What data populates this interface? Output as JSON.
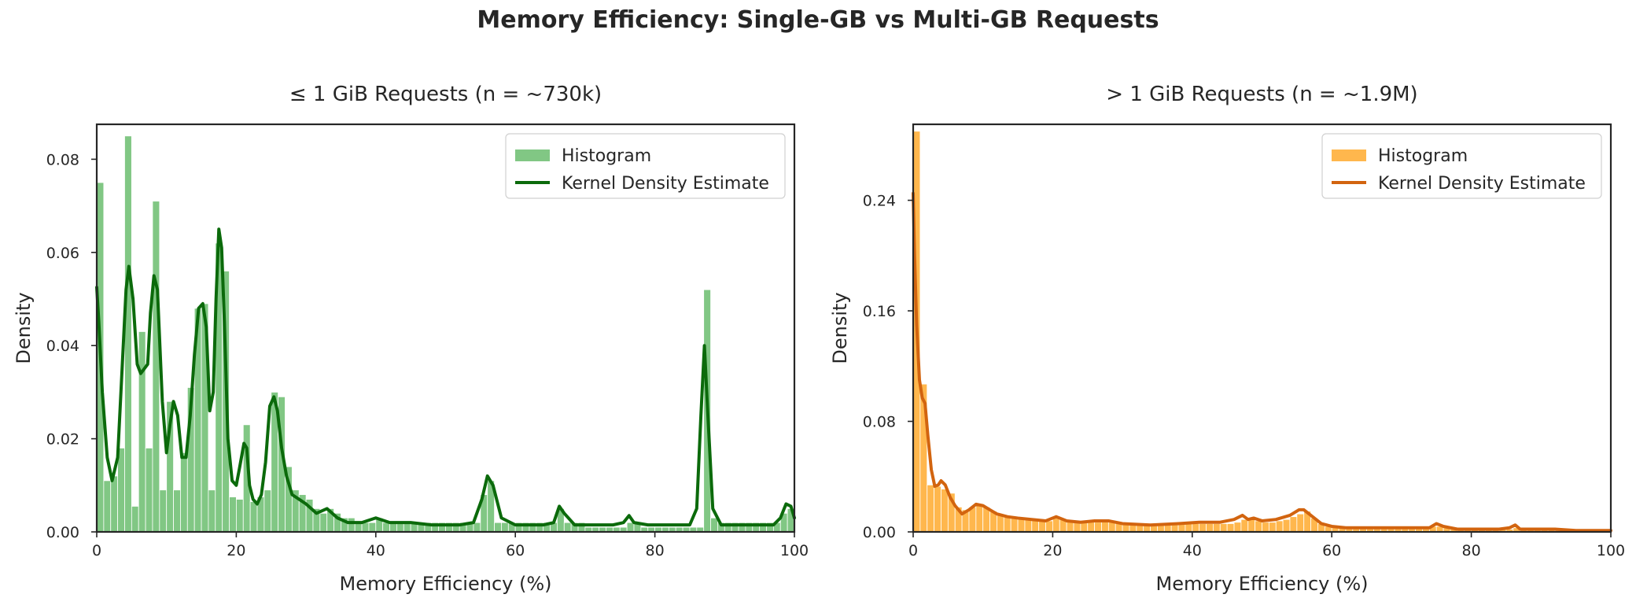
{
  "figure": {
    "suptitle": "Memory Efficiency: Single-GB vs Multi-GB Requests"
  },
  "chart_data": [
    {
      "type": "bar",
      "title": "≤ 1 GiB Requests (n = ~730k)",
      "xlabel": "Memory Efficiency (%)",
      "ylabel": "Density",
      "xlim": [
        0,
        100
      ],
      "ylim": [
        0,
        0.0875
      ],
      "xticks": [
        "0",
        "20",
        "40",
        "60",
        "80",
        "100"
      ],
      "xtick_values": [
        0,
        20,
        40,
        60,
        80,
        100
      ],
      "yticks": [
        "0.00",
        "0.02",
        "0.04",
        "0.06",
        "0.08"
      ],
      "ytick_values": [
        0,
        0.02,
        0.04,
        0.06,
        0.08
      ],
      "grid": false,
      "legend_position": "top-right",
      "legend": [
        "Histogram",
        "Kernel Density Estimate"
      ],
      "colors": {
        "hist": "#81c784",
        "kde": "#0b6a0b"
      },
      "bin_width": 1,
      "histogram": [
        0.075,
        0.011,
        0.012,
        0.018,
        0.085,
        0.0055,
        0.043,
        0.018,
        0.071,
        0.009,
        0.028,
        0.009,
        0.017,
        0.031,
        0.048,
        0.049,
        0.009,
        0.062,
        0.056,
        0.0075,
        0.007,
        0.023,
        0.0065,
        0.0075,
        0.009,
        0.03,
        0.029,
        0.014,
        0.009,
        0.008,
        0.007,
        0.005,
        0.004,
        0.005,
        0.004,
        0.003,
        0.003,
        0.002,
        0.002,
        0.002,
        0.003,
        0.002,
        0.002,
        0.002,
        0.002,
        0.002,
        0.002,
        0.002,
        0.002,
        0.002,
        0.002,
        0.002,
        0.002,
        0.002,
        0.002,
        0.008,
        0.011,
        0.002,
        0.002,
        0.002,
        0.002,
        0.002,
        0.002,
        0.002,
        0.002,
        0.002,
        0.005,
        0.002,
        0.002,
        0.002,
        0.001,
        0.001,
        0.001,
        0.001,
        0.001,
        0.001,
        0.002,
        0.002,
        0.001,
        0.001,
        0.001,
        0.001,
        0.001,
        0.001,
        0.001,
        0.001,
        0.001,
        0.052,
        0.003,
        0.002,
        0.002,
        0.002,
        0.002,
        0.002,
        0.002,
        0.002,
        0.002,
        0.002,
        0.004,
        0.005
      ],
      "kde": {
        "x": [
          0,
          0.3,
          0.8,
          1.5,
          2.2,
          3.0,
          3.8,
          4.2,
          4.6,
          5.2,
          5.8,
          6.3,
          6.8,
          7.3,
          7.7,
          8.2,
          8.7,
          9.4,
          10.0,
          10.5,
          11.0,
          11.6,
          12.2,
          12.8,
          13.4,
          14.0,
          14.6,
          15.2,
          15.7,
          16.2,
          16.7,
          17.1,
          17.5,
          17.9,
          18.3,
          18.8,
          19.4,
          20.0,
          20.5,
          21.1,
          21.5,
          21.9,
          22.4,
          23.0,
          23.6,
          24.2,
          24.8,
          25.4,
          25.9,
          26.5,
          27.2,
          28.0,
          29.0,
          30.0,
          31.5,
          33.0,
          34.5,
          36.0,
          38.0,
          40.0,
          42.0,
          45.0,
          48.0,
          50.0,
          52.0,
          54.0,
          55.2,
          56.0,
          56.8,
          58.0,
          60.0,
          62.0,
          64.0,
          65.5,
          66.3,
          67.0,
          68.5,
          70.0,
          72.0,
          74.0,
          75.5,
          76.3,
          77.0,
          79.0,
          82.0,
          85.0,
          86.0,
          86.6,
          87.1,
          87.6,
          88.3,
          89.5,
          91.0,
          93.0,
          95.0,
          97.0,
          98.0,
          98.8,
          99.5,
          100
        ],
        "y": [
          0.0525,
          0.045,
          0.03,
          0.016,
          0.011,
          0.016,
          0.04,
          0.052,
          0.057,
          0.05,
          0.036,
          0.034,
          0.035,
          0.036,
          0.047,
          0.055,
          0.052,
          0.028,
          0.017,
          0.023,
          0.028,
          0.025,
          0.016,
          0.016,
          0.025,
          0.038,
          0.048,
          0.049,
          0.044,
          0.026,
          0.03,
          0.05,
          0.065,
          0.061,
          0.045,
          0.02,
          0.011,
          0.01,
          0.014,
          0.019,
          0.018,
          0.01,
          0.007,
          0.006,
          0.008,
          0.015,
          0.027,
          0.029,
          0.026,
          0.018,
          0.012,
          0.008,
          0.007,
          0.006,
          0.004,
          0.005,
          0.003,
          0.002,
          0.002,
          0.003,
          0.002,
          0.002,
          0.0015,
          0.0015,
          0.0015,
          0.002,
          0.007,
          0.012,
          0.01,
          0.003,
          0.0015,
          0.0015,
          0.0015,
          0.002,
          0.0055,
          0.004,
          0.0015,
          0.0015,
          0.0015,
          0.0015,
          0.002,
          0.0035,
          0.002,
          0.0015,
          0.0015,
          0.0015,
          0.005,
          0.025,
          0.04,
          0.025,
          0.005,
          0.0015,
          0.0015,
          0.0015,
          0.0015,
          0.0015,
          0.003,
          0.006,
          0.0055,
          0.003
        ]
      }
    },
    {
      "type": "bar",
      "title": "> 1 GiB Requests (n = ~1.9M)",
      "xlabel": "Memory Efficiency (%)",
      "ylabel": "Density",
      "xlim": [
        0,
        100
      ],
      "ylim": [
        0,
        0.295
      ],
      "xticks": [
        "0",
        "20",
        "40",
        "60",
        "80",
        "100"
      ],
      "xtick_values": [
        0,
        20,
        40,
        60,
        80,
        100
      ],
      "yticks": [
        "0.00",
        "0.08",
        "0.16",
        "0.24"
      ],
      "ytick_values": [
        0,
        0.08,
        0.16,
        0.24
      ],
      "grid": false,
      "legend_position": "top-right",
      "legend": [
        "Histogram",
        "Kernel Density Estimate"
      ],
      "colors": {
        "hist": "#ffb74d",
        "kde": "#d2640f"
      },
      "bin_width": 1,
      "histogram": [
        0.29,
        0.107,
        0.034,
        0.033,
        0.031,
        0.028,
        0.018,
        0.016,
        0.018,
        0.02,
        0.018,
        0.015,
        0.012,
        0.011,
        0.01,
        0.01,
        0.009,
        0.009,
        0.008,
        0.008,
        0.01,
        0.009,
        0.008,
        0.007,
        0.007,
        0.007,
        0.007,
        0.008,
        0.007,
        0.007,
        0.006,
        0.006,
        0.006,
        0.006,
        0.006,
        0.006,
        0.006,
        0.006,
        0.006,
        0.006,
        0.006,
        0.006,
        0.006,
        0.006,
        0.006,
        0.006,
        0.007,
        0.009,
        0.009,
        0.008,
        0.007,
        0.007,
        0.008,
        0.009,
        0.011,
        0.013,
        0.015,
        0.01,
        0.006,
        0.004,
        0.004,
        0.003,
        0.003,
        0.003,
        0.003,
        0.003,
        0.003,
        0.003,
        0.003,
        0.003,
        0.003,
        0.003,
        0.003,
        0.003,
        0.004,
        0.004,
        0.003,
        0.002,
        0.002,
        0.002,
        0.002,
        0.002,
        0.002,
        0.002,
        0.002,
        0.002,
        0.003,
        0.002,
        0.002,
        0.002,
        0.002,
        0.002,
        0.002,
        0.002,
        0.002,
        0.002,
        0.002,
        0.002,
        0.002,
        0.002
      ],
      "kde": {
        "x": [
          0,
          0.2,
          0.5,
          0.9,
          1.3,
          1.7,
          2.1,
          2.6,
          3.1,
          3.6,
          4.0,
          4.6,
          5.3,
          6.0,
          7.0,
          8.0,
          9.0,
          10.0,
          11.0,
          12.0,
          13.5,
          15.0,
          17.0,
          19.0,
          20.5,
          22.0,
          24.0,
          26.0,
          28.0,
          30.0,
          34.0,
          38.0,
          41.0,
          44.0,
          46.0,
          47.2,
          48.0,
          48.8,
          50.0,
          52.0,
          54.0,
          55.3,
          56.0,
          57.0,
          58.5,
          60.0,
          62.0,
          65.0,
          68.0,
          70.0,
          72.0,
          74.0,
          75.0,
          76.0,
          78.0,
          80.0,
          82.0,
          84.0,
          85.5,
          86.3,
          87.0,
          89.0,
          92.0,
          95.0,
          98.0,
          100
        ],
        "y": [
          0.245,
          0.2,
          0.15,
          0.11,
          0.097,
          0.093,
          0.07,
          0.045,
          0.033,
          0.034,
          0.037,
          0.034,
          0.025,
          0.019,
          0.013,
          0.016,
          0.02,
          0.019,
          0.016,
          0.013,
          0.011,
          0.01,
          0.009,
          0.008,
          0.011,
          0.008,
          0.007,
          0.008,
          0.008,
          0.006,
          0.005,
          0.006,
          0.007,
          0.007,
          0.009,
          0.012,
          0.009,
          0.01,
          0.008,
          0.009,
          0.012,
          0.016,
          0.016,
          0.012,
          0.006,
          0.004,
          0.003,
          0.003,
          0.003,
          0.003,
          0.003,
          0.003,
          0.006,
          0.004,
          0.002,
          0.002,
          0.002,
          0.002,
          0.003,
          0.005,
          0.002,
          0.002,
          0.002,
          0.001,
          0.001,
          0.001
        ]
      }
    }
  ]
}
